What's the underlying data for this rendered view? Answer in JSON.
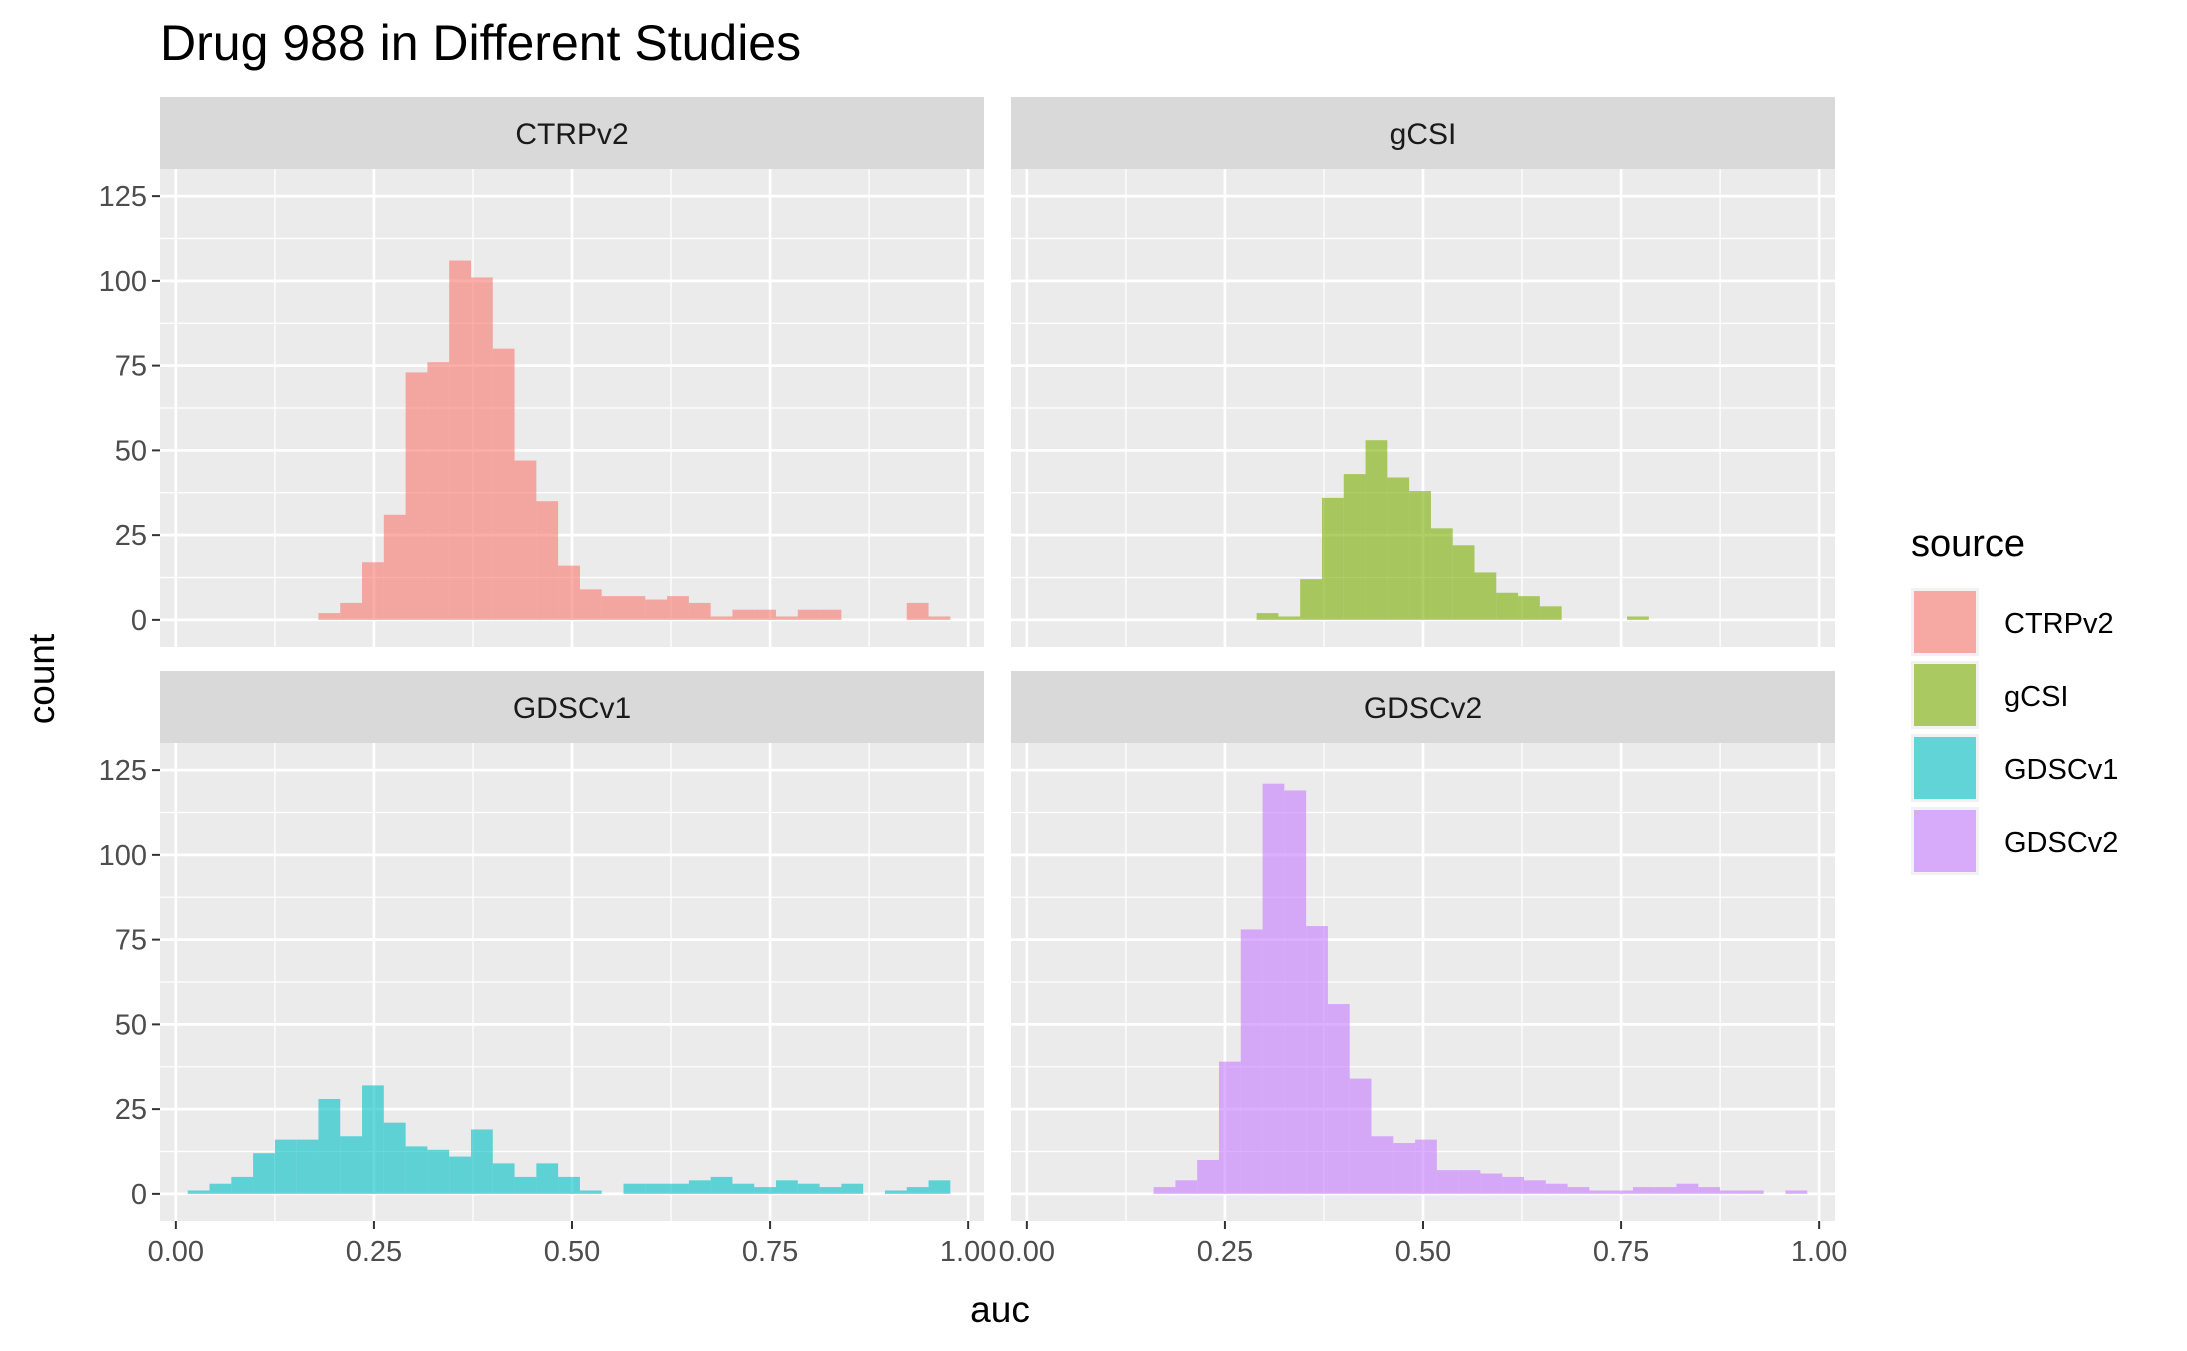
{
  "chart_data": {
    "type": "bar",
    "subtype": "faceted-histogram",
    "title": "Drug 988 in Different Studies",
    "xlabel": "auc",
    "ylabel": "count",
    "xlim": [
      -0.02,
      1.02
    ],
    "ylim": [
      -8,
      133
    ],
    "x_ticks": [
      0.0,
      0.25,
      0.5,
      0.75,
      1.0
    ],
    "x_tick_labels": [
      "0.00",
      "0.25",
      "0.50",
      "0.75",
      "1.00"
    ],
    "y_ticks": [
      0,
      25,
      50,
      75,
      100,
      125
    ],
    "y_tick_labels": [
      "0",
      "25",
      "50",
      "75",
      "100",
      "125"
    ],
    "bin_width": 0.0275,
    "grid": true,
    "legend": {
      "title": "source",
      "position": "right",
      "entries": [
        {
          "label": "CTRPv2",
          "color": "#F8766D"
        },
        {
          "label": "gCSI",
          "color": "#7CAE00"
        },
        {
          "label": "GDSCv1",
          "color": "#00BFC4"
        },
        {
          "label": "GDSCv2",
          "color": "#C77CFF"
        }
      ]
    },
    "facets": [
      {
        "name": "CTRPv2",
        "color": "#F8766D",
        "bin_starts": [
          0.18,
          0.2075,
          0.235,
          0.2625,
          0.29,
          0.3175,
          0.345,
          0.3725,
          0.4,
          0.4275,
          0.455,
          0.4825,
          0.51,
          0.5375,
          0.565,
          0.5925,
          0.62,
          0.6475,
          0.675,
          0.7025,
          0.73,
          0.7575,
          0.785,
          0.8125,
          0.84,
          0.8675,
          0.895,
          0.9225,
          0.95
        ],
        "counts": [
          2,
          5,
          17,
          31,
          73,
          76,
          106,
          101,
          80,
          47,
          35,
          16,
          9,
          7,
          7,
          6,
          7,
          5,
          1,
          3,
          3,
          1,
          3,
          3,
          0,
          0,
          0,
          5,
          1
        ]
      },
      {
        "name": "gCSI",
        "color": "#7CAE00",
        "bin_starts": [
          0.29,
          0.3175,
          0.345,
          0.3725,
          0.4,
          0.4275,
          0.455,
          0.4825,
          0.51,
          0.5375,
          0.565,
          0.5925,
          0.62,
          0.6475,
          0.675,
          0.7025,
          0.73,
          0.7575
        ],
        "counts": [
          2,
          1,
          12,
          36,
          43,
          53,
          42,
          38,
          27,
          22,
          14,
          8,
          7,
          4,
          0,
          0,
          0,
          1
        ]
      },
      {
        "name": "GDSCv1",
        "color": "#00BFC4",
        "bin_starts": [
          0.015,
          0.0425,
          0.07,
          0.0975,
          0.125,
          0.1525,
          0.18,
          0.2075,
          0.235,
          0.2625,
          0.29,
          0.3175,
          0.345,
          0.3725,
          0.4,
          0.4275,
          0.455,
          0.4825,
          0.51,
          0.5375,
          0.565,
          0.5925,
          0.62,
          0.6475,
          0.675,
          0.7025,
          0.73,
          0.7575,
          0.785,
          0.8125,
          0.84,
          0.8675,
          0.895,
          0.9225,
          0.95
        ],
        "counts": [
          1,
          3,
          5,
          12,
          16,
          16,
          28,
          17,
          32,
          21,
          14,
          13,
          11,
          19,
          9,
          5,
          9,
          5,
          1,
          0,
          3,
          3,
          3,
          4,
          5,
          3,
          2,
          4,
          3,
          2,
          3,
          0,
          1,
          2,
          4
        ]
      },
      {
        "name": "GDSCv2",
        "color": "#C77CFF",
        "bin_starts": [
          0.16,
          0.1875,
          0.215,
          0.2425,
          0.27,
          0.2975,
          0.325,
          0.3525,
          0.38,
          0.4075,
          0.435,
          0.4625,
          0.49,
          0.5175,
          0.545,
          0.5725,
          0.6,
          0.6275,
          0.655,
          0.6825,
          0.71,
          0.7375,
          0.765,
          0.7925,
          0.82,
          0.8475,
          0.875,
          0.9025,
          0.93,
          0.9575
        ],
        "counts": [
          2,
          4,
          10,
          39,
          78,
          121,
          119,
          79,
          56,
          34,
          17,
          15,
          16,
          7,
          7,
          6,
          5,
          4,
          3,
          2,
          1,
          1,
          2,
          2,
          3,
          2,
          1,
          1,
          0,
          1
        ]
      }
    ]
  }
}
